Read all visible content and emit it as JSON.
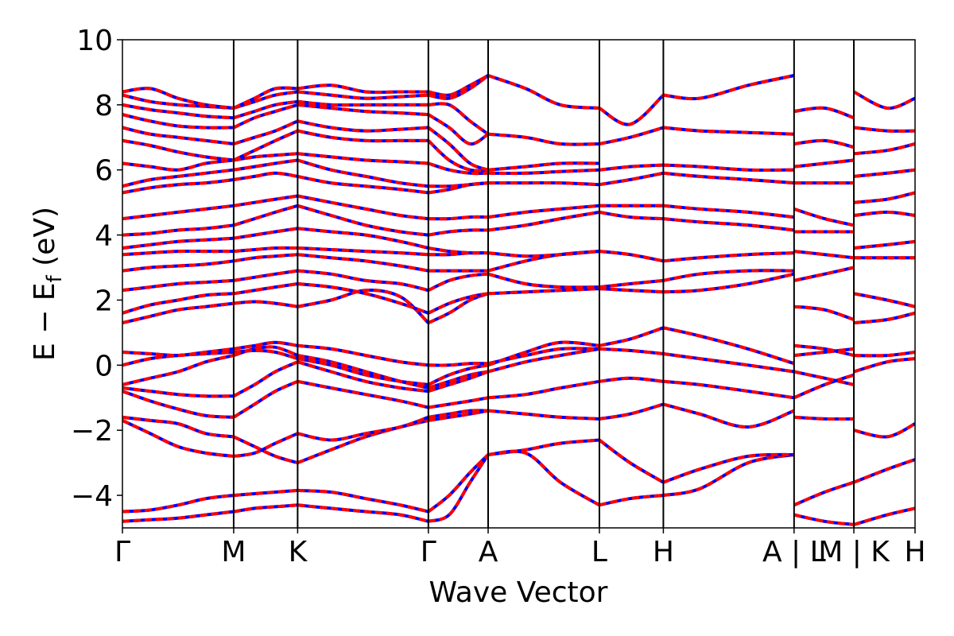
{
  "chart_data": {
    "type": "line",
    "xlabel": "Wave Vector",
    "ylabel": {
      "main": "E − E",
      "sub": "f",
      "unit": " (eV)"
    },
    "ylim": [
      -5,
      10
    ],
    "yticks": [
      -4,
      -2,
      0,
      2,
      4,
      6,
      8,
      10
    ],
    "ytick_labels": [
      "−4",
      "−2",
      "0",
      "2",
      "4",
      "6",
      "8",
      "10"
    ],
    "kpath": {
      "range": [
        0,
        11.4
      ],
      "ticks": [
        {
          "x": 0.0,
          "label": "Γ"
        },
        {
          "x": 1.6,
          "label": "M"
        },
        {
          "x": 2.52,
          "label": "K"
        },
        {
          "x": 4.4,
          "label": "Γ"
        },
        {
          "x": 5.26,
          "label": "A"
        },
        {
          "x": 6.86,
          "label": "L"
        },
        {
          "x": 7.78,
          "label": "H"
        },
        {
          "x": 9.66,
          "label": "A | L"
        },
        {
          "x": 10.52,
          "label": "M | K"
        },
        {
          "x": 11.4,
          "label": "H"
        }
      ]
    },
    "series_colors": {
      "reference": "#ff0000",
      "comparison": "#0000ff"
    },
    "segments": [
      {
        "x": [
          0,
          0.4,
          0.8,
          1.2,
          1.6
        ],
        "bands": [
          [
            -4.8,
            -4.75,
            -4.7,
            -4.6,
            -4.5
          ],
          [
            -4.5,
            -4.45,
            -4.3,
            -4.1,
            -4.0
          ],
          [
            -1.7,
            -2.1,
            -2.5,
            -2.7,
            -2.8
          ],
          [
            -1.6,
            -1.7,
            -1.8,
            -2.1,
            -2.2
          ],
          [
            -0.8,
            -1.1,
            -1.35,
            -1.55,
            -1.6
          ],
          [
            -0.7,
            -0.8,
            -0.9,
            -0.95,
            -0.95
          ],
          [
            -0.6,
            -0.4,
            -0.2,
            0.1,
            0.3
          ],
          [
            0.0,
            0.2,
            0.3,
            0.35,
            0.4
          ],
          [
            0.4,
            0.35,
            0.3,
            0.4,
            0.5
          ],
          [
            1.3,
            1.5,
            1.7,
            1.8,
            1.9
          ],
          [
            1.6,
            1.85,
            2.0,
            2.15,
            2.2
          ],
          [
            2.3,
            2.4,
            2.5,
            2.55,
            2.6
          ],
          [
            2.9,
            3.0,
            3.05,
            3.1,
            3.2
          ],
          [
            3.4,
            3.45,
            3.5,
            3.5,
            3.5
          ],
          [
            3.6,
            3.7,
            3.8,
            3.85,
            3.9
          ],
          [
            4.0,
            4.05,
            4.15,
            4.2,
            4.3
          ],
          [
            4.5,
            4.6,
            4.7,
            4.8,
            4.9
          ],
          [
            5.3,
            5.45,
            5.55,
            5.6,
            5.7
          ],
          [
            5.5,
            5.7,
            5.8,
            5.9,
            6.0
          ],
          [
            6.2,
            6.1,
            6.0,
            6.2,
            6.3
          ],
          [
            6.9,
            6.75,
            6.55,
            6.4,
            6.3
          ],
          [
            7.3,
            7.1,
            7.0,
            6.9,
            6.8
          ],
          [
            7.7,
            7.5,
            7.35,
            7.3,
            7.3
          ],
          [
            8.0,
            7.85,
            7.75,
            7.65,
            7.6
          ],
          [
            8.3,
            8.1,
            8.0,
            7.95,
            7.9
          ],
          [
            8.4,
            8.5,
            8.2,
            8.0,
            7.9
          ]
        ]
      },
      {
        "x": [
          1.6,
          1.9,
          2.2,
          2.52
        ],
        "bands": [
          [
            -4.5,
            -4.4,
            -4.35,
            -4.3
          ],
          [
            -4.0,
            -3.95,
            -3.9,
            -3.85
          ],
          [
            -2.8,
            -2.7,
            -2.4,
            -2.1
          ],
          [
            -2.2,
            -2.5,
            -2.8,
            -3.0
          ],
          [
            -1.6,
            -1.2,
            -0.8,
            -0.5
          ],
          [
            -0.95,
            -0.6,
            -0.2,
            0.1
          ],
          [
            0.3,
            0.5,
            0.55,
            0.3
          ],
          [
            0.4,
            0.45,
            0.4,
            0.2
          ],
          [
            0.5,
            0.6,
            0.7,
            0.6
          ],
          [
            1.9,
            1.95,
            1.9,
            1.8
          ],
          [
            2.2,
            2.3,
            2.4,
            2.5
          ],
          [
            2.6,
            2.7,
            2.8,
            2.9
          ],
          [
            3.2,
            3.3,
            3.35,
            3.4
          ],
          [
            3.5,
            3.55,
            3.6,
            3.6
          ],
          [
            3.9,
            4.0,
            4.1,
            4.2
          ],
          [
            4.3,
            4.5,
            4.7,
            4.9
          ],
          [
            4.9,
            5.0,
            5.1,
            5.2
          ],
          [
            5.7,
            5.8,
            5.9,
            5.8
          ],
          [
            6.0,
            6.1,
            6.2,
            6.3
          ],
          [
            6.3,
            6.4,
            6.45,
            6.5
          ],
          [
            6.3,
            6.6,
            6.9,
            7.2
          ],
          [
            6.8,
            7.0,
            7.2,
            7.5
          ],
          [
            7.3,
            7.6,
            7.8,
            8.0
          ],
          [
            7.6,
            7.8,
            8.0,
            8.1
          ],
          [
            7.9,
            8.1,
            8.3,
            8.4
          ],
          [
            7.9,
            8.2,
            8.5,
            8.5
          ]
        ]
      },
      {
        "x": [
          2.52,
          3.0,
          3.5,
          4.0,
          4.4
        ],
        "bands": [
          [
            -4.3,
            -4.4,
            -4.5,
            -4.6,
            -4.8
          ],
          [
            -3.85,
            -3.9,
            -4.1,
            -4.3,
            -4.5
          ],
          [
            -3.0,
            -2.6,
            -2.2,
            -1.9,
            -1.7
          ],
          [
            -2.1,
            -2.3,
            -2.1,
            -1.9,
            -1.6
          ],
          [
            -0.5,
            -0.7,
            -0.9,
            -1.1,
            -1.3
          ],
          [
            0.1,
            -0.2,
            -0.5,
            -0.7,
            -0.8
          ],
          [
            0.3,
            0.1,
            -0.2,
            -0.5,
            -0.7
          ],
          [
            0.2,
            0.0,
            -0.3,
            -0.5,
            -0.6
          ],
          [
            0.6,
            0.5,
            0.3,
            0.1,
            0.0
          ],
          [
            1.8,
            2.0,
            2.3,
            2.1,
            1.3
          ],
          [
            2.5,
            2.4,
            2.2,
            1.9,
            1.6
          ],
          [
            2.9,
            2.8,
            2.6,
            2.5,
            2.3
          ],
          [
            3.4,
            3.3,
            3.2,
            3.05,
            2.9
          ],
          [
            3.6,
            3.55,
            3.5,
            3.45,
            3.4
          ],
          [
            4.2,
            4.1,
            4.0,
            3.8,
            3.6
          ],
          [
            4.9,
            4.6,
            4.3,
            4.1,
            4.0
          ],
          [
            5.2,
            5.0,
            4.8,
            4.6,
            4.5
          ],
          [
            5.8,
            5.6,
            5.5,
            5.4,
            5.3
          ],
          [
            6.3,
            6.0,
            5.8,
            5.6,
            5.5
          ],
          [
            6.5,
            6.4,
            6.3,
            6.25,
            6.2
          ],
          [
            7.2,
            7.0,
            6.9,
            6.9,
            6.9
          ],
          [
            7.5,
            7.3,
            7.2,
            7.25,
            7.3
          ],
          [
            8.0,
            7.9,
            7.8,
            7.75,
            7.7
          ],
          [
            8.1,
            8.0,
            8.0,
            8.0,
            8.0
          ],
          [
            8.4,
            8.3,
            8.2,
            8.25,
            8.3
          ],
          [
            8.5,
            8.6,
            8.4,
            8.4,
            8.4
          ]
        ]
      },
      {
        "x": [
          4.4,
          4.7,
          5.0,
          5.26
        ],
        "bands": [
          [
            -4.8,
            -4.6,
            -3.6,
            -2.75
          ],
          [
            -4.5,
            -4.0,
            -3.3,
            -2.75
          ],
          [
            -1.7,
            -1.6,
            -1.5,
            -1.4
          ],
          [
            -1.6,
            -1.5,
            -1.4,
            -1.4
          ],
          [
            -1.3,
            -1.2,
            -1.1,
            -1.0
          ],
          [
            -0.8,
            -0.6,
            -0.4,
            -0.2
          ],
          [
            -0.7,
            -0.5,
            -0.3,
            -0.2
          ],
          [
            -0.6,
            -0.3,
            -0.1,
            0.0
          ],
          [
            0.0,
            0.0,
            0.05,
            0.05
          ],
          [
            1.3,
            1.6,
            2.0,
            2.2
          ],
          [
            1.6,
            1.9,
            2.1,
            2.2
          ],
          [
            2.3,
            2.6,
            2.75,
            2.8
          ],
          [
            2.9,
            2.9,
            2.9,
            2.9
          ],
          [
            3.4,
            3.4,
            3.45,
            3.45
          ],
          [
            3.6,
            3.5,
            3.45,
            3.45
          ],
          [
            4.0,
            4.1,
            4.15,
            4.15
          ],
          [
            4.5,
            4.5,
            4.55,
            4.55
          ],
          [
            5.3,
            5.4,
            5.55,
            5.6
          ],
          [
            5.5,
            5.5,
            5.55,
            5.6
          ],
          [
            6.2,
            6.0,
            5.9,
            5.9
          ],
          [
            6.9,
            6.3,
            6.0,
            6.0
          ],
          [
            7.3,
            6.8,
            6.2,
            6.0
          ],
          [
            7.7,
            7.3,
            6.8,
            7.1
          ],
          [
            8.0,
            8.0,
            7.5,
            7.1
          ],
          [
            8.3,
            8.2,
            8.5,
            8.9
          ],
          [
            8.4,
            8.3,
            8.6,
            8.9
          ]
        ]
      },
      {
        "x": [
          5.26,
          5.8,
          6.3,
          6.86
        ],
        "bands": [
          [
            -2.75,
            -2.7,
            -3.6,
            -4.3
          ],
          [
            -2.75,
            -2.6,
            -2.4,
            -2.3
          ],
          [
            -1.4,
            -1.5,
            -1.6,
            -1.65
          ],
          [
            -1.0,
            -0.9,
            -0.7,
            -0.5
          ],
          [
            -0.2,
            0.1,
            0.3,
            0.5
          ],
          [
            0.0,
            0.4,
            0.7,
            0.6
          ],
          [
            0.05,
            0.3,
            0.5,
            0.5
          ],
          [
            2.2,
            2.25,
            2.3,
            2.35
          ],
          [
            2.8,
            2.5,
            2.4,
            2.4
          ],
          [
            2.9,
            3.2,
            3.4,
            3.5
          ],
          [
            3.45,
            3.35,
            3.4,
            3.5
          ],
          [
            4.15,
            4.3,
            4.5,
            4.7
          ],
          [
            4.55,
            4.7,
            4.8,
            4.9
          ],
          [
            5.6,
            5.6,
            5.6,
            5.55
          ],
          [
            5.9,
            5.9,
            5.95,
            6.0
          ],
          [
            6.0,
            6.1,
            6.2,
            6.2
          ],
          [
            7.1,
            7.0,
            6.8,
            6.8
          ],
          [
            8.9,
            8.5,
            8.0,
            7.9
          ]
        ]
      },
      {
        "x": [
          6.86,
          7.3,
          7.78
        ],
        "bands": [
          [
            -4.3,
            -4.1,
            -4.0
          ],
          [
            -2.3,
            -3.0,
            -3.6
          ],
          [
            -1.65,
            -1.5,
            -1.2
          ],
          [
            -0.5,
            -0.4,
            -0.5
          ],
          [
            0.5,
            0.45,
            0.35
          ],
          [
            0.6,
            0.8,
            1.15
          ],
          [
            2.35,
            2.3,
            2.25
          ],
          [
            2.4,
            2.5,
            2.6
          ],
          [
            3.5,
            3.4,
            3.2
          ],
          [
            4.7,
            4.55,
            4.5
          ],
          [
            4.9,
            4.9,
            4.9
          ],
          [
            5.55,
            5.7,
            5.9
          ],
          [
            6.0,
            6.1,
            6.15
          ],
          [
            6.8,
            7.0,
            7.3
          ],
          [
            7.9,
            7.4,
            8.3
          ]
        ]
      },
      {
        "x": [
          7.78,
          8.3,
          9.0,
          9.66
        ],
        "bands": [
          [
            -4.0,
            -3.8,
            -3.0,
            -2.75
          ],
          [
            -3.6,
            -3.2,
            -2.8,
            -2.75
          ],
          [
            -1.2,
            -1.5,
            -1.9,
            -1.4
          ],
          [
            -0.5,
            -0.6,
            -0.8,
            -1.0
          ],
          [
            0.35,
            0.2,
            0.0,
            -0.2
          ],
          [
            1.15,
            0.9,
            0.5,
            0.05
          ],
          [
            2.25,
            2.3,
            2.5,
            2.8
          ],
          [
            2.6,
            2.8,
            2.9,
            2.9
          ],
          [
            3.2,
            3.3,
            3.4,
            3.45
          ],
          [
            4.5,
            4.4,
            4.3,
            4.15
          ],
          [
            4.9,
            4.8,
            4.7,
            4.55
          ],
          [
            5.9,
            5.8,
            5.7,
            5.6
          ],
          [
            6.15,
            6.1,
            6.0,
            6.0
          ],
          [
            7.3,
            7.2,
            7.15,
            7.1
          ],
          [
            8.3,
            8.2,
            8.6,
            8.9
          ]
        ]
      },
      {
        "x": [
          9.66,
          10.1,
          10.52
        ],
        "bands": [
          [
            -4.6,
            -4.8,
            -4.9
          ],
          [
            -4.3,
            -3.9,
            -3.6
          ],
          [
            -1.6,
            -1.65,
            -1.65
          ],
          [
            -1.0,
            -0.6,
            -0.3
          ],
          [
            -0.2,
            -0.4,
            -0.6
          ],
          [
            0.3,
            0.4,
            0.5
          ],
          [
            0.6,
            0.5,
            0.3
          ],
          [
            1.8,
            1.7,
            1.4
          ],
          [
            2.6,
            2.8,
            3.0
          ],
          [
            3.5,
            3.4,
            3.3
          ],
          [
            4.1,
            4.1,
            4.1
          ],
          [
            4.8,
            4.5,
            4.3
          ],
          [
            5.6,
            5.6,
            5.6
          ],
          [
            6.1,
            6.2,
            6.3
          ],
          [
            6.8,
            6.9,
            6.7
          ],
          [
            7.8,
            7.9,
            7.6
          ]
        ]
      },
      {
        "x": [
          10.52,
          11.0,
          11.4
        ],
        "bands": [
          [
            -4.9,
            -4.6,
            -4.4
          ],
          [
            -3.6,
            -3.2,
            -2.9
          ],
          [
            -2.0,
            -2.2,
            -1.8
          ],
          [
            -0.2,
            0.1,
            0.2
          ],
          [
            0.3,
            0.3,
            0.4
          ],
          [
            1.3,
            1.4,
            1.6
          ],
          [
            2.2,
            2.0,
            1.8
          ],
          [
            3.3,
            3.3,
            3.3
          ],
          [
            3.6,
            3.7,
            3.8
          ],
          [
            4.6,
            4.7,
            4.6
          ],
          [
            5.0,
            5.1,
            5.3
          ],
          [
            5.8,
            5.9,
            6.0
          ],
          [
            6.5,
            6.6,
            6.8
          ],
          [
            7.3,
            7.2,
            7.2
          ],
          [
            8.4,
            7.9,
            8.2
          ]
        ]
      }
    ]
  }
}
